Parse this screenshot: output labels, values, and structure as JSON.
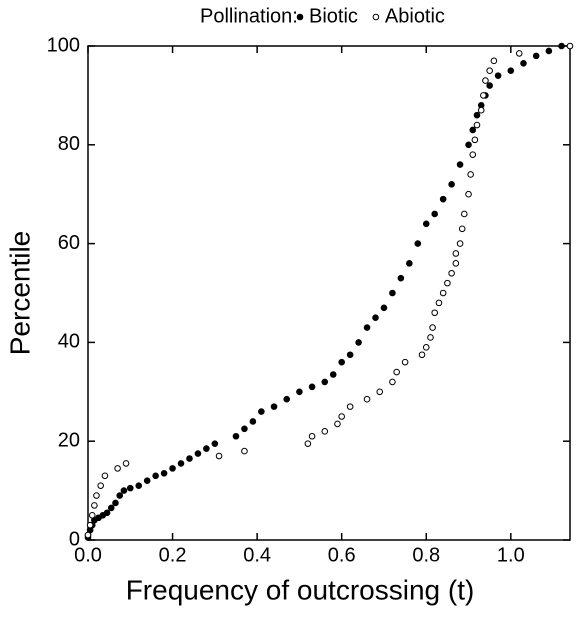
{
  "chart_data": {
    "type": "scatter",
    "legend_title": "Pollination:",
    "xlabel": "Frequency of outcrossing (t)",
    "ylabel": "Percentile",
    "xlim": [
      0,
      1.14
    ],
    "ylim": [
      0,
      100
    ],
    "xticks": [
      {
        "value": 0,
        "label": "0.0"
      },
      {
        "value": 0.2,
        "label": "0.2"
      },
      {
        "value": 0.4,
        "label": "0.4"
      },
      {
        "value": 0.6,
        "label": "0.6"
      },
      {
        "value": 0.8,
        "label": "0.8"
      },
      {
        "value": 1.0,
        "label": "1.0"
      }
    ],
    "yticks": [
      0,
      20,
      40,
      60,
      80,
      100
    ],
    "series": [
      {
        "name": "Biotic",
        "color": "#000000",
        "marker": "filled",
        "x": [
          0,
          0,
          0.005,
          0.01,
          0.015,
          0.025,
          0.035,
          0.045,
          0.055,
          0.065,
          0.075,
          0.085,
          0.1,
          0.12,
          0.14,
          0.16,
          0.18,
          0.2,
          0.22,
          0.24,
          0.26,
          0.28,
          0.3,
          0.35,
          0.37,
          0.39,
          0.41,
          0.44,
          0.47,
          0.5,
          0.53,
          0.56,
          0.58,
          0.6,
          0.62,
          0.64,
          0.66,
          0.68,
          0.7,
          0.72,
          0.74,
          0.76,
          0.78,
          0.8,
          0.82,
          0.84,
          0.86,
          0.88,
          0.9,
          0.91,
          0.92,
          0.93,
          0.94,
          0.95,
          0.97,
          1.0,
          1.03,
          1.06,
          1.09,
          1.12
        ],
        "values": [
          0.5,
          1,
          2,
          3,
          4,
          4.5,
          5,
          5.5,
          6.5,
          7.5,
          9,
          10,
          10.5,
          11,
          12,
          13,
          13.5,
          14.5,
          15.5,
          16.5,
          17.5,
          18.5,
          19.5,
          21,
          22.5,
          24,
          26,
          27,
          28.5,
          30,
          31,
          32,
          33.5,
          36,
          37.5,
          40,
          43,
          45,
          47,
          50,
          53,
          56,
          60,
          64,
          66,
          69,
          72,
          76,
          80,
          83,
          86,
          88,
          90,
          92,
          94,
          95,
          96.5,
          98,
          99,
          100
        ]
      },
      {
        "name": "Abiotic",
        "color": "#000000",
        "marker": "open",
        "x": [
          0,
          0.005,
          0.01,
          0.015,
          0.02,
          0.03,
          0.04,
          0.07,
          0.09,
          0.31,
          0.37,
          0.52,
          0.53,
          0.56,
          0.59,
          0.6,
          0.62,
          0.66,
          0.69,
          0.72,
          0.73,
          0.75,
          0.79,
          0.8,
          0.81,
          0.815,
          0.82,
          0.83,
          0.84,
          0.85,
          0.86,
          0.87,
          0.87,
          0.88,
          0.885,
          0.89,
          0.9,
          0.905,
          0.91,
          0.915,
          0.92,
          0.93,
          0.935,
          0.94,
          0.95,
          0.96,
          1.02,
          1.14
        ],
        "values": [
          1,
          3,
          5,
          7,
          9,
          11,
          13,
          14.5,
          15.5,
          17,
          18,
          19.5,
          21,
          22,
          23.5,
          25,
          27,
          28.5,
          30,
          32,
          34,
          36,
          37.5,
          39,
          41,
          43,
          46,
          48,
          50,
          52,
          54,
          56,
          58,
          60,
          63,
          66,
          70,
          74,
          78,
          81,
          84,
          87,
          90,
          93,
          95,
          97,
          98.5,
          100
        ]
      }
    ]
  }
}
